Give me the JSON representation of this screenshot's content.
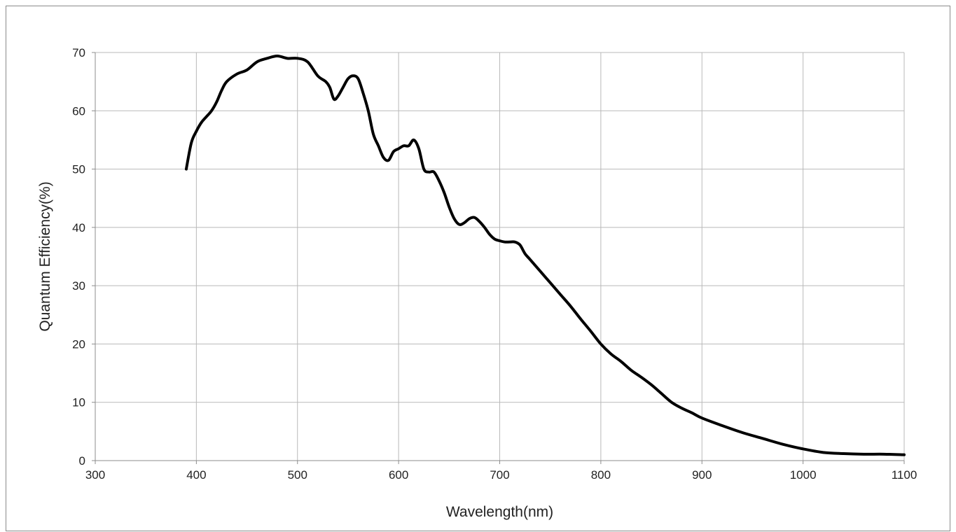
{
  "chart_data": {
    "type": "line",
    "title": "",
    "xlabel": "Wavelength(nm)",
    "ylabel": "Quantum Efficiency(%)",
    "xlim": [
      300,
      1100
    ],
    "ylim": [
      0,
      70
    ],
    "xticks": [
      300,
      400,
      500,
      600,
      700,
      800,
      900,
      1000,
      1100
    ],
    "yticks": [
      0,
      10,
      20,
      30,
      40,
      50,
      60,
      70
    ],
    "grid": true,
    "legend": "none",
    "line_color": "#000000",
    "series": [
      {
        "x": [
          390,
          395,
          400,
          405,
          410,
          415,
          420,
          425,
          430,
          440,
          450,
          460,
          470,
          480,
          490,
          500,
          510,
          520,
          528,
          532,
          536,
          540,
          545,
          550,
          555,
          560,
          565,
          570,
          575,
          580,
          585,
          590,
          595,
          600,
          605,
          610,
          615,
          620,
          625,
          630,
          635,
          640,
          645,
          650,
          655,
          660,
          665,
          670,
          675,
          680,
          685,
          690,
          695,
          700,
          705,
          710,
          715,
          720,
          725,
          730,
          740,
          750,
          760,
          770,
          780,
          790,
          800,
          810,
          820,
          830,
          840,
          850,
          860,
          870,
          880,
          890,
          900,
          920,
          940,
          960,
          980,
          1000,
          1020,
          1040,
          1060,
          1080,
          1100
        ],
        "values": [
          50,
          54.5,
          56.5,
          58,
          59,
          60,
          61.5,
          63.5,
          65,
          66.3,
          67,
          68.4,
          69,
          69.4,
          69,
          69,
          68.4,
          66,
          65,
          64,
          62,
          62.5,
          64,
          65.5,
          66,
          65.5,
          63,
          60,
          56,
          54,
          52,
          51.5,
          53,
          53.5,
          54,
          54,
          55,
          53.5,
          50,
          49.5,
          49.5,
          48,
          46,
          43.5,
          41.5,
          40.5,
          40.8,
          41.5,
          41.7,
          41,
          40,
          38.8,
          38,
          37.7,
          37.5,
          37.5,
          37.5,
          37,
          35.5,
          34.5,
          32.5,
          30.5,
          28.5,
          26.5,
          24.3,
          22.2,
          20,
          18.3,
          17,
          15.5,
          14.3,
          13,
          11.5,
          10,
          9,
          8.2,
          7.3,
          6,
          4.8,
          3.8,
          2.8,
          2,
          1.4,
          1.2,
          1.1,
          1.1,
          1
        ]
      }
    ]
  }
}
